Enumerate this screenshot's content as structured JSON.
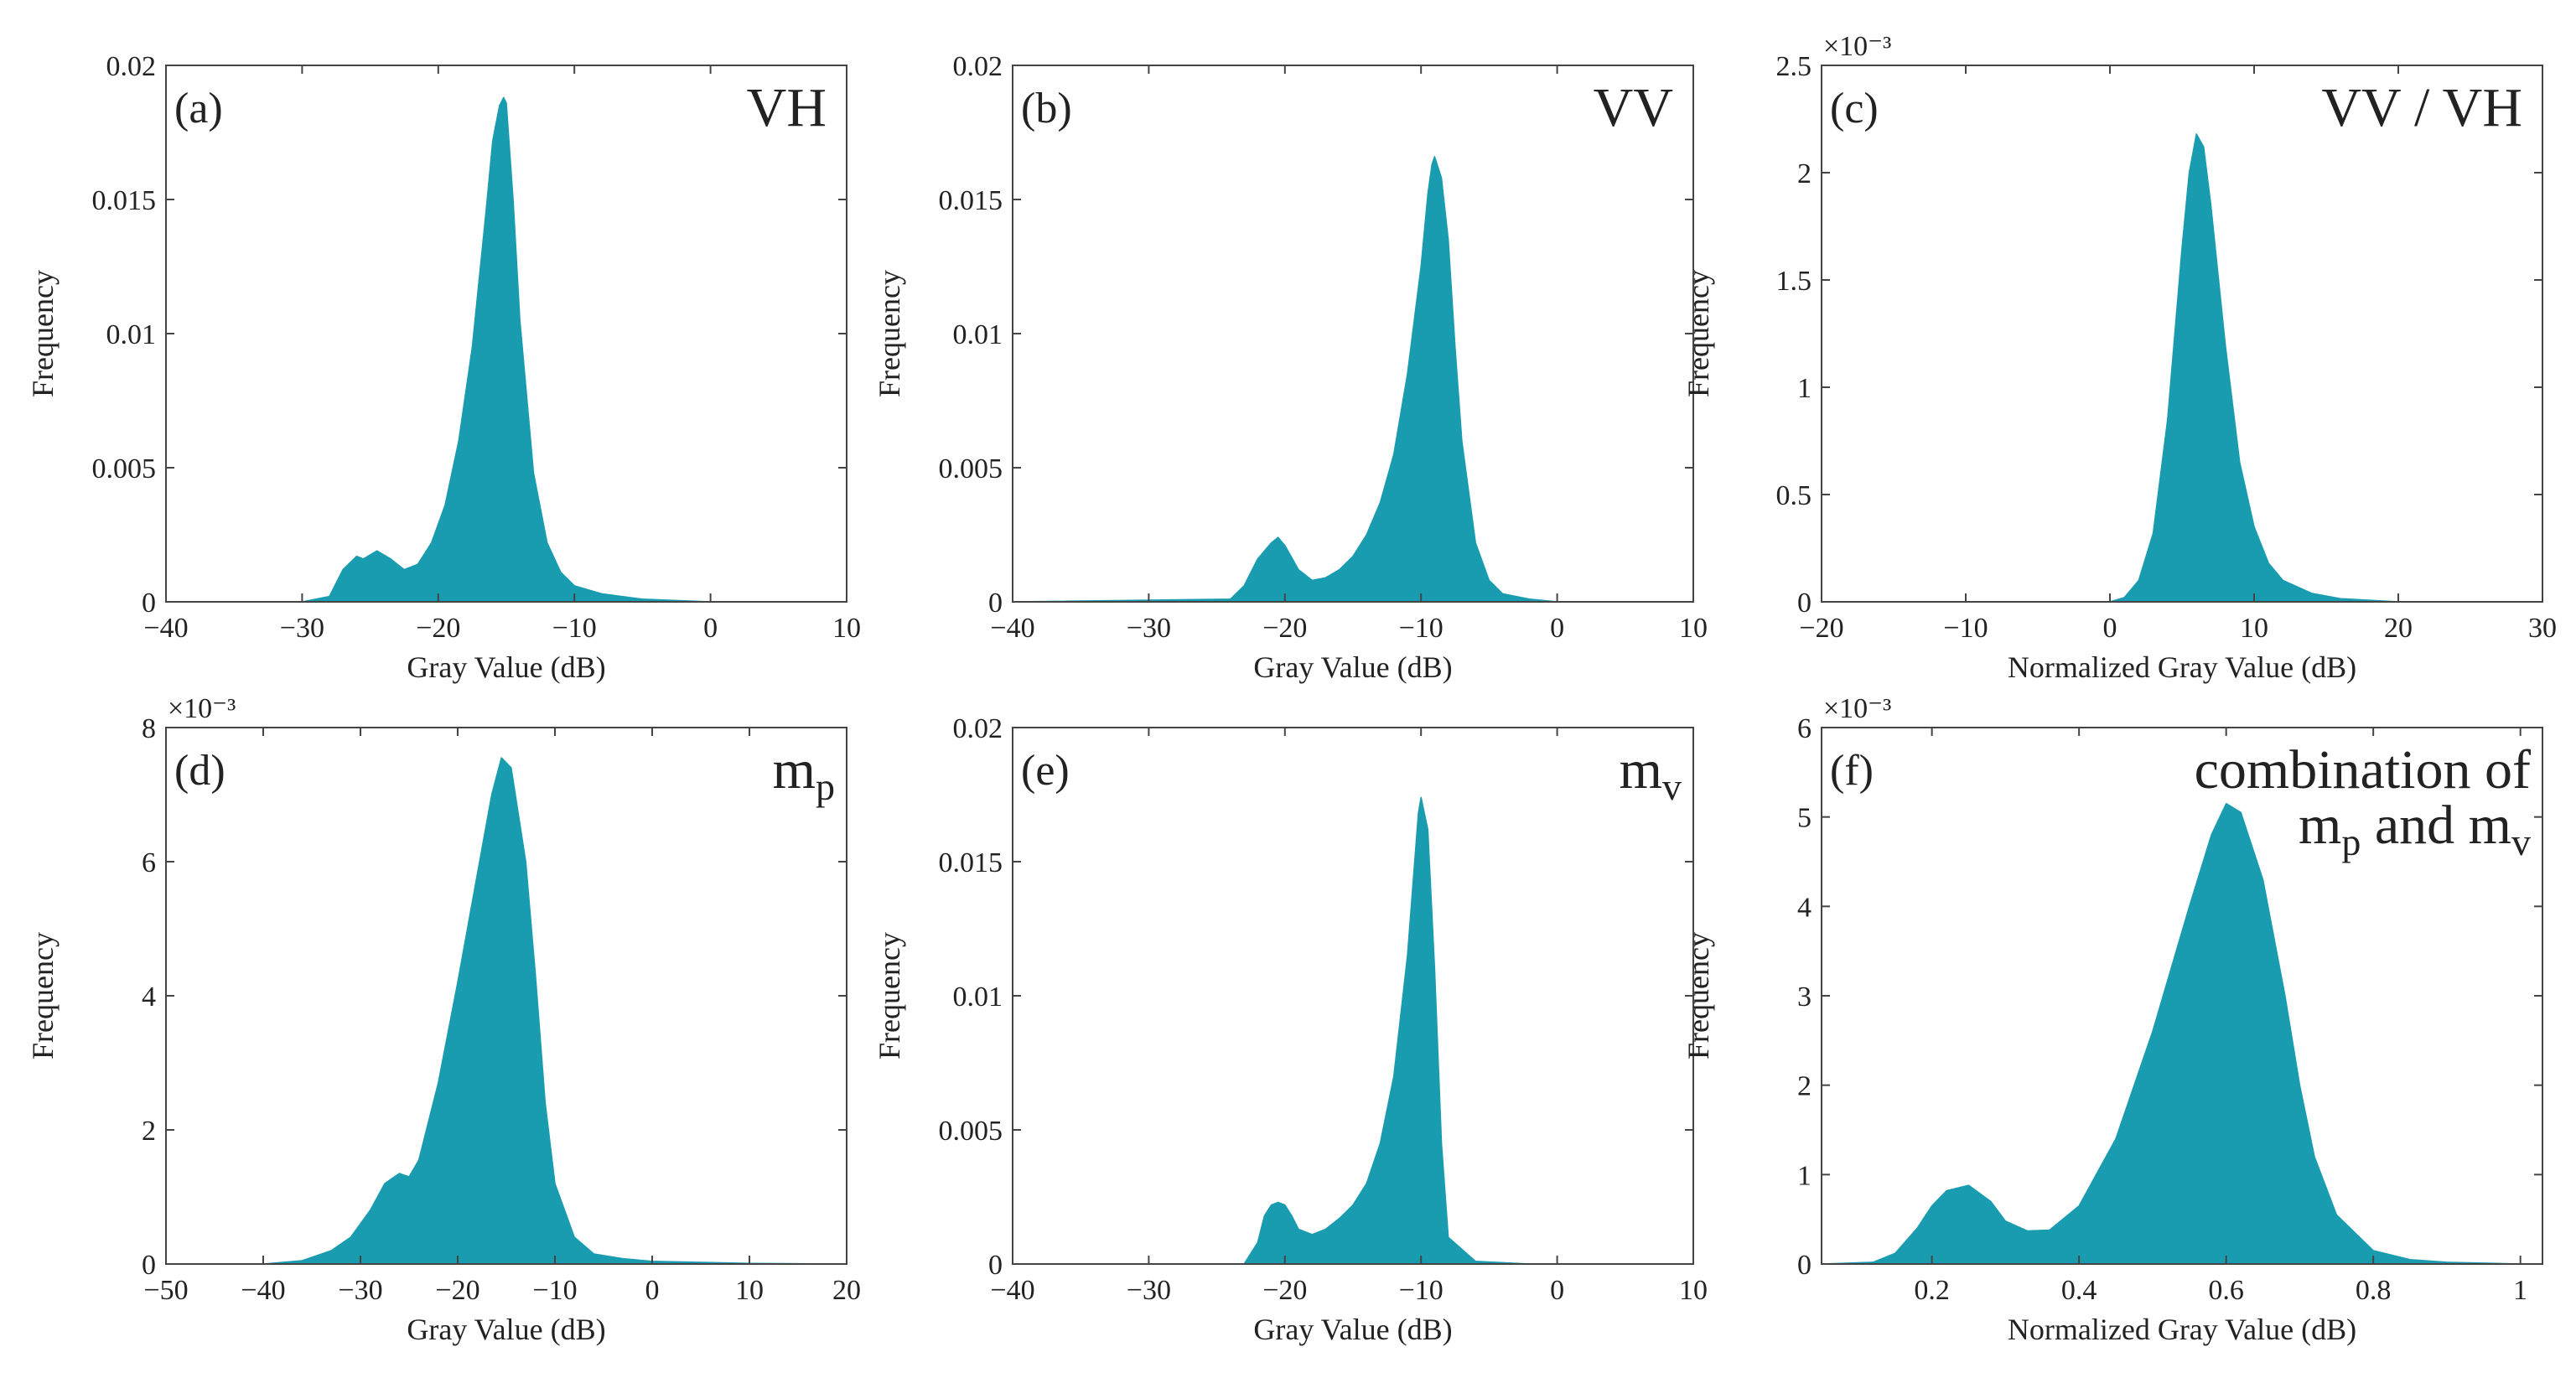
{
  "figure": {
    "accent_color": "#1a9cb0"
  },
  "chart_data": [
    {
      "id": "a",
      "type": "area",
      "panel_label": "(a)",
      "variable_label": "VH",
      "xlabel": "Gray Value (dB)",
      "ylabel": "Frequency",
      "multiplier": "",
      "xlim": [
        -40,
        10
      ],
      "ylim": [
        0,
        0.02
      ],
      "xticks": [
        -40,
        -30,
        -20,
        -10,
        0,
        10
      ],
      "xtick_labels": [
        "−40",
        "−30",
        "−20",
        "−10",
        "0",
        "10"
      ],
      "yticks": [
        0,
        0.005,
        0.01,
        0.015,
        0.02
      ],
      "ytick_labels": [
        "0",
        "0.005",
        "0.01",
        "0.015",
        "0.02"
      ],
      "x": [
        -40,
        -30,
        -28,
        -27,
        -26,
        -25.5,
        -24.5,
        -23.5,
        -22.5,
        -21.5,
        -20.5,
        -19.5,
        -18.5,
        -17.5,
        -16.5,
        -16,
        -15.5,
        -15.2,
        -15,
        -14.5,
        -14,
        -13,
        -12,
        -11,
        -10,
        -8,
        -5,
        0,
        10
      ],
      "y": [
        0,
        0,
        0.0002,
        0.0012,
        0.0017,
        0.0016,
        0.0019,
        0.0016,
        0.0012,
        0.0014,
        0.0022,
        0.0036,
        0.006,
        0.0095,
        0.0145,
        0.0172,
        0.0185,
        0.0188,
        0.0186,
        0.015,
        0.0105,
        0.0048,
        0.0022,
        0.0011,
        0.0006,
        0.0003,
        0.0001,
        0,
        0
      ]
    },
    {
      "id": "b",
      "type": "area",
      "panel_label": "(b)",
      "variable_label": "VV",
      "xlabel": "Gray Value (dB)",
      "ylabel": "Frequency",
      "multiplier": "",
      "xlim": [
        -40,
        10
      ],
      "ylim": [
        0,
        0.02
      ],
      "xticks": [
        -40,
        -30,
        -20,
        -10,
        0,
        10
      ],
      "xtick_labels": [
        "−40",
        "−30",
        "−20",
        "−10",
        "0",
        "10"
      ],
      "yticks": [
        0,
        0.005,
        0.01,
        0.015,
        0.02
      ],
      "ytick_labels": [
        "0",
        "0.005",
        "0.01",
        "0.015",
        "0.02"
      ],
      "x": [
        -40,
        -24,
        -23,
        -22,
        -21,
        -20.5,
        -20,
        -19,
        -18,
        -17,
        -16,
        -15,
        -14,
        -13,
        -12,
        -11,
        -10,
        -9.5,
        -9.2,
        -9,
        -8.5,
        -8,
        -7.5,
        -7,
        -6,
        -5,
        -4,
        -2,
        0,
        10
      ],
      "y": [
        0,
        0.0001,
        0.0006,
        0.0016,
        0.0022,
        0.0024,
        0.0021,
        0.0012,
        0.0008,
        0.0009,
        0.0012,
        0.0017,
        0.0025,
        0.0037,
        0.0055,
        0.0085,
        0.0125,
        0.0152,
        0.0163,
        0.0166,
        0.0158,
        0.0135,
        0.0095,
        0.006,
        0.0022,
        0.0008,
        0.0003,
        0.0001,
        0,
        0
      ]
    },
    {
      "id": "c",
      "type": "area",
      "panel_label": "(c)",
      "variable_label": "VV / VH",
      "xlabel": "Normalized Gray Value (dB)",
      "ylabel": "Frequency",
      "multiplier": "×10⁻³",
      "xlim": [
        -20,
        30
      ],
      "ylim": [
        0,
        2.5
      ],
      "xticks": [
        -20,
        -10,
        0,
        10,
        20,
        30
      ],
      "xtick_labels": [
        "−20",
        "−10",
        "0",
        "10",
        "20",
        "30"
      ],
      "yticks": [
        0,
        0.5,
        1,
        1.5,
        2,
        2.5
      ],
      "ytick_labels": [
        "0",
        "0.5",
        "1",
        "1.5",
        "2",
        "2.5"
      ],
      "x": [
        -20,
        0,
        1,
        2,
        3,
        4,
        5,
        5.5,
        6,
        6.5,
        7,
        8,
        9,
        10,
        11,
        12,
        14,
        16,
        20,
        30
      ],
      "y": [
        0,
        0,
        0.02,
        0.1,
        0.32,
        0.85,
        1.65,
        2.0,
        2.18,
        2.12,
        1.85,
        1.2,
        0.65,
        0.35,
        0.18,
        0.1,
        0.04,
        0.015,
        0,
        0
      ]
    },
    {
      "id": "d",
      "type": "area",
      "panel_label": "(d)",
      "variable_label": "m",
      "variable_subscript": "p",
      "xlabel": "Gray Value (dB)",
      "ylabel": "Frequency",
      "multiplier": "×10⁻³",
      "xlim": [
        -50,
        20
      ],
      "ylim": [
        0,
        8
      ],
      "xticks": [
        -50,
        -40,
        -30,
        -20,
        -10,
        0,
        10,
        20
      ],
      "xtick_labels": [
        "−50",
        "−40",
        "−30",
        "−20",
        "−10",
        "0",
        "10",
        "20"
      ],
      "yticks": [
        0,
        2,
        4,
        6,
        8
      ],
      "ytick_labels": [
        "0",
        "2",
        "4",
        "6",
        "8"
      ],
      "x": [
        -50,
        -40,
        -36,
        -33,
        -31,
        -29,
        -27.5,
        -26,
        -25,
        -24,
        -22,
        -20,
        -18,
        -16.5,
        -15.5,
        -14.5,
        -13,
        -12,
        -11,
        -10,
        -8,
        -6,
        -3,
        0,
        10,
        20
      ],
      "y": [
        0,
        0,
        0.05,
        0.2,
        0.4,
        0.8,
        1.2,
        1.35,
        1.3,
        1.55,
        2.7,
        4.2,
        5.8,
        7.0,
        7.55,
        7.4,
        6.0,
        4.3,
        2.4,
        1.2,
        0.4,
        0.15,
        0.08,
        0.04,
        0.01,
        0
      ]
    },
    {
      "id": "e",
      "type": "area",
      "panel_label": "(e)",
      "variable_label": "m",
      "variable_subscript": "v",
      "xlabel": "Gray Value (dB)",
      "ylabel": "Frequency",
      "multiplier": "",
      "xlim": [
        -40,
        10
      ],
      "ylim": [
        0,
        0.02
      ],
      "xticks": [
        -40,
        -30,
        -20,
        -10,
        0,
        10
      ],
      "xtick_labels": [
        "−40",
        "−30",
        "−20",
        "−10",
        "0",
        "10"
      ],
      "yticks": [
        0,
        0.005,
        0.01,
        0.015,
        0.02
      ],
      "ytick_labels": [
        "0",
        "0.005",
        "0.01",
        "0.015",
        "0.02"
      ],
      "x": [
        -40,
        -23,
        -22,
        -21.5,
        -21,
        -20.5,
        -20,
        -19.5,
        -19,
        -18,
        -17,
        -16,
        -15,
        -14,
        -13,
        -12,
        -11,
        -10.5,
        -10.2,
        -10,
        -9.5,
        -9,
        -8.5,
        -8,
        -6,
        -2,
        0,
        10
      ],
      "y": [
        0,
        0,
        0.0008,
        0.0018,
        0.0022,
        0.0023,
        0.0022,
        0.0018,
        0.0013,
        0.0011,
        0.0013,
        0.0017,
        0.0022,
        0.003,
        0.0045,
        0.007,
        0.0115,
        0.0148,
        0.0168,
        0.0174,
        0.0162,
        0.011,
        0.0045,
        0.001,
        0.0001,
        0,
        0,
        0
      ]
    },
    {
      "id": "f",
      "type": "area",
      "panel_label": "(f)",
      "variable_label": "combination of",
      "variable_label_line2": "m",
      "variable_label_sub1": "p",
      "variable_label_mid": " and m",
      "variable_label_sub2": "v",
      "xlabel": "Normalized Gray Value (dB)",
      "ylabel": "Frequency",
      "multiplier": "×10⁻³",
      "xlim": [
        0.05,
        1.03
      ],
      "ylim": [
        0,
        6
      ],
      "xticks": [
        0.2,
        0.4,
        0.6,
        0.8,
        1.0
      ],
      "xtick_labels": [
        "0.2",
        "0.4",
        "0.6",
        "0.8",
        "1"
      ],
      "yticks": [
        0,
        1,
        2,
        3,
        4,
        5,
        6
      ],
      "ytick_labels": [
        "0",
        "1",
        "2",
        "3",
        "4",
        "5",
        "6"
      ],
      "x": [
        0.05,
        0.12,
        0.15,
        0.18,
        0.2,
        0.22,
        0.25,
        0.28,
        0.3,
        0.33,
        0.36,
        0.4,
        0.45,
        0.5,
        0.55,
        0.58,
        0.6,
        0.62,
        0.65,
        0.68,
        0.7,
        0.72,
        0.75,
        0.8,
        0.85,
        0.9,
        0.95,
        1.0,
        1.03
      ],
      "y": [
        0,
        0.02,
        0.12,
        0.4,
        0.65,
        0.82,
        0.88,
        0.7,
        0.48,
        0.37,
        0.38,
        0.65,
        1.4,
        2.6,
        4.0,
        4.8,
        5.15,
        5.05,
        4.3,
        3.0,
        2.0,
        1.2,
        0.55,
        0.15,
        0.05,
        0.02,
        0.01,
        0,
        0
      ]
    }
  ]
}
